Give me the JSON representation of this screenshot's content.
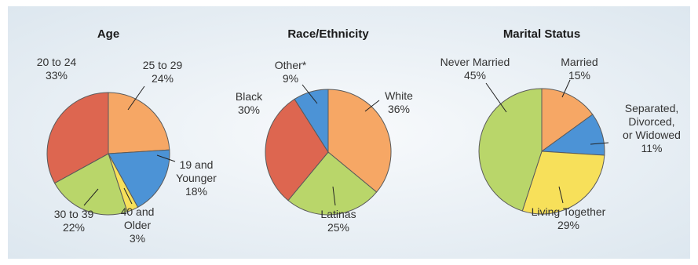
{
  "colors": {
    "background_edge": "#dde7ef",
    "background_center": "#f8fafc",
    "outline": "#5a5a5a"
  },
  "chart_data": [
    {
      "type": "pie",
      "title": "Age",
      "slices": [
        {
          "category": "25 to 29",
          "value": 24,
          "value_label": "24%",
          "color": "#f6a765"
        },
        {
          "category": "19 and Younger",
          "category_lines": [
            "19 and",
            "Younger"
          ],
          "value": 18,
          "value_label": "18%",
          "color": "#4c93d6"
        },
        {
          "category": "40 and Older",
          "category_lines": [
            "40 and",
            "Older"
          ],
          "value": 3,
          "value_label": "3%",
          "color": "#f7e05a"
        },
        {
          "category": "30 to 39",
          "value": 22,
          "value_label": "22%",
          "color": "#b9d66a"
        },
        {
          "category": "20 to 24",
          "value": 33,
          "value_label": "33%",
          "color": "#dd6650"
        }
      ]
    },
    {
      "type": "pie",
      "title": "Race/Ethnicity",
      "slices": [
        {
          "category": "White",
          "value": 36,
          "value_label": "36%",
          "color": "#f6a765"
        },
        {
          "category": "Latinas",
          "value": 25,
          "value_label": "25%",
          "color": "#b9d66a"
        },
        {
          "category": "Black",
          "value": 30,
          "value_label": "30%",
          "color": "#dd6650"
        },
        {
          "category": "Other*",
          "value": 9,
          "value_label": "9%",
          "color": "#4c93d6"
        }
      ]
    },
    {
      "type": "pie",
      "title": "Marital Status",
      "slices": [
        {
          "category": "Married",
          "value": 15,
          "value_label": "15%",
          "color": "#f6a765"
        },
        {
          "category": "Separated, Divorced, or Widowed",
          "category_lines": [
            "Separated,",
            "Divorced,",
            "or Widowed"
          ],
          "value": 11,
          "value_label": "11%",
          "color": "#4c93d6"
        },
        {
          "category": "Living Together",
          "value": 29,
          "value_label": "29%",
          "color": "#f7e05a"
        },
        {
          "category": "Never Married",
          "value": 45,
          "value_label": "45%",
          "color": "#b9d66a"
        }
      ]
    }
  ]
}
